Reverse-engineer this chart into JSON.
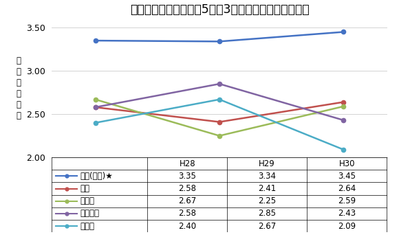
{
  "title": "《第２学区》倍率上位5校の3か年倍率推移（普通科）",
  "x_labels": [
    "H28",
    "H29",
    "H30"
  ],
  "ylabel_chars": [
    "前",
    "期",
    "受",
    "検",
    "倍",
    "率"
  ],
  "ylim": [
    2.0,
    3.6
  ],
  "yticks": [
    2.0,
    2.5,
    3.0,
    3.5
  ],
  "series": [
    {
      "name": "船橋(県立)★",
      "values": [
        3.35,
        3.34,
        3.45
      ],
      "color": "#4472C4",
      "marker": "o"
    },
    {
      "name": "国分",
      "values": [
        2.58,
        2.41,
        2.64
      ],
      "color": "#C0504D",
      "marker": "o"
    },
    {
      "name": "八千代",
      "values": [
        2.67,
        2.25,
        2.59
      ],
      "color": "#9BBB59",
      "marker": "o"
    },
    {
      "name": "松戸国際",
      "values": [
        2.58,
        2.85,
        2.43
      ],
      "color": "#8064A2",
      "marker": "o"
    },
    {
      "name": "薬園台",
      "values": [
        2.4,
        2.67,
        2.09
      ],
      "color": "#4BACC6",
      "marker": "o"
    }
  ],
  "background_color": "#FFFFFF",
  "title_fontsize": 12.5,
  "axis_fontsize": 9,
  "table_fontsize": 8.5
}
